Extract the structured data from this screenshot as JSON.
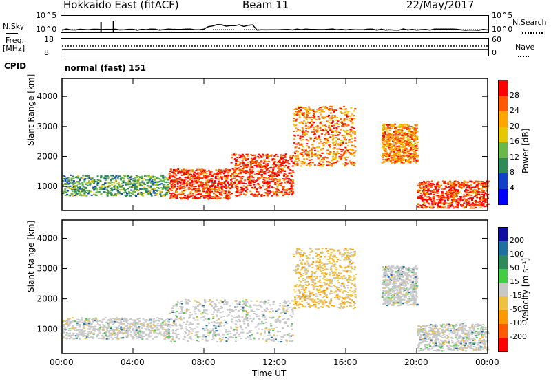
{
  "header": {
    "station": "Hokkaido East (fitACF)",
    "beam": "Beam 11",
    "date": "22/May/2017"
  },
  "top_panels": {
    "nsky_label": "N.Sky",
    "nsky_ticks": [
      "10^5",
      "10^0"
    ],
    "nsearch_label": "N.Search",
    "nsearch_ticks": [
      "10^5",
      "10^0"
    ],
    "freq_label_1": "Freq.",
    "freq_label_2": "[MHz]",
    "freq_ticks": [
      "18",
      "8"
    ],
    "nave_label": "Nave",
    "nave_ticks": [
      "60",
      "0"
    ],
    "cpid_label": "CPID",
    "cpid_value": "normal (fast) 151"
  },
  "chart_data": [
    {
      "type": "heatmap",
      "name": "power-panel",
      "ylabel": "Slant Range [km]",
      "y_ticks": [
        "4000",
        "3000",
        "2000",
        "1000"
      ],
      "y_tick_values": [
        4000,
        3000,
        2000,
        1000
      ],
      "ylim": [
        200,
        4600
      ],
      "xlim_hours": [
        0,
        24
      ],
      "colorbar_label": "Power [dB]",
      "colorbar_ticks": [
        "28",
        "24",
        "20",
        "16",
        "12",
        "8",
        "4"
      ],
      "colorbar_colors": [
        "#ff0000",
        "#ff5a00",
        "#ffa500",
        "#e7c800",
        "#69b84a",
        "#2e8b57",
        "#1040c8",
        "#0000ff"
      ],
      "regions": [
        {
          "x": [
            0,
            6
          ],
          "y": [
            700,
            1400
          ],
          "value": 12
        },
        {
          "x": [
            6,
            9.5
          ],
          "y": [
            600,
            1600
          ],
          "value": 28
        },
        {
          "x": [
            9.5,
            13
          ],
          "y": [
            700,
            2100
          ],
          "value": 28
        },
        {
          "x": [
            13,
            16.5
          ],
          "y": [
            1700,
            3700
          ],
          "value": 22
        },
        {
          "x": [
            18,
            20
          ],
          "y": [
            1800,
            3100
          ],
          "value": 20
        },
        {
          "x": [
            20,
            24
          ],
          "y": [
            300,
            1200
          ],
          "value": 28
        }
      ]
    },
    {
      "type": "heatmap",
      "name": "velocity-panel",
      "ylabel": "Slant Range [km]",
      "y_ticks": [
        "4000",
        "3000",
        "2000",
        "1000"
      ],
      "y_tick_values": [
        4000,
        3000,
        2000,
        1000
      ],
      "ylim": [
        200,
        4600
      ],
      "xlim_hours": [
        0,
        24
      ],
      "colorbar_label": "Velocity [m s⁻¹]",
      "colorbar_ticks": [
        "200",
        "100",
        "50",
        "15",
        "-15",
        "-50",
        "-100",
        "-200"
      ],
      "colorbar_colors": [
        "#1010a0",
        "#1f6fa0",
        "#2e8b57",
        "#44cc44",
        "#c8c8c8",
        "#f0c040",
        "#ff9900",
        "#ff5a00",
        "#ff0000"
      ],
      "regions": [
        {
          "x": [
            0,
            6
          ],
          "y": [
            700,
            1400
          ],
          "value": 0
        },
        {
          "x": [
            6,
            13
          ],
          "y": [
            600,
            2000
          ],
          "value": 0
        },
        {
          "x": [
            13,
            16.5
          ],
          "y": [
            1700,
            3700
          ],
          "value": -30
        },
        {
          "x": [
            18,
            20
          ],
          "y": [
            1800,
            3100
          ],
          "value": 0
        },
        {
          "x": [
            20,
            24
          ],
          "y": [
            300,
            1200
          ],
          "value": 0
        }
      ]
    }
  ],
  "x_axis": {
    "ticks": [
      "00:00",
      "04:00",
      "08:00",
      "12:00",
      "16:00",
      "20:00",
      "00:00"
    ],
    "tick_hours": [
      0,
      4,
      8,
      12,
      16,
      20,
      24
    ],
    "label": "Time UT"
  }
}
